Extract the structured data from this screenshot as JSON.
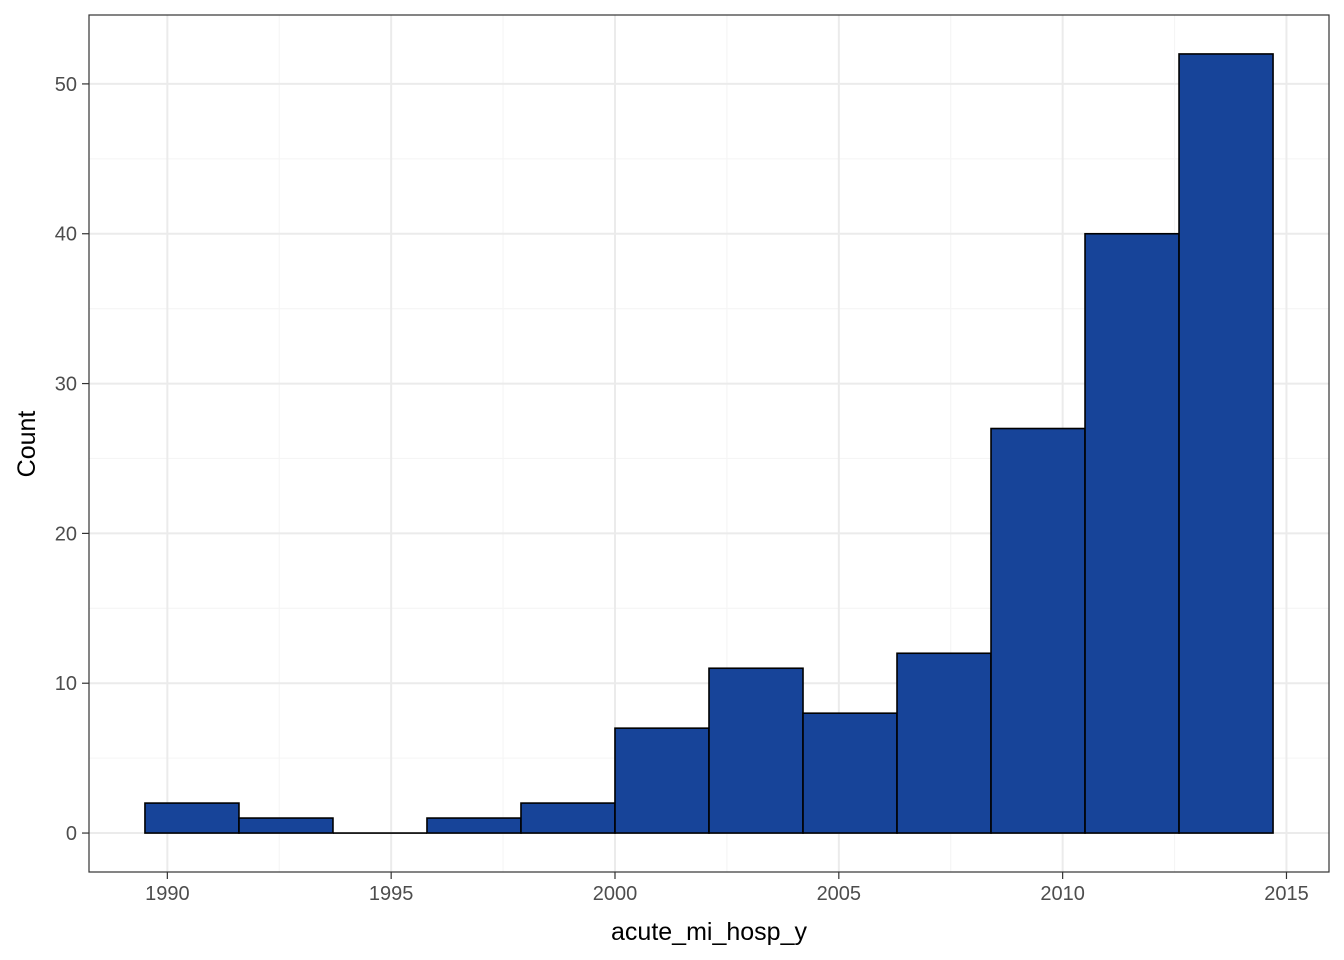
{
  "chart_data": {
    "type": "bar",
    "title": "",
    "xlabel": "acute_mi_hosp_y",
    "ylabel": "Count",
    "bins": [
      {
        "x_start": 1989.5,
        "x_end": 1991.6,
        "count": 2
      },
      {
        "x_start": 1991.6,
        "x_end": 1993.7,
        "count": 1
      },
      {
        "x_start": 1993.7,
        "x_end": 1995.8,
        "count": 0
      },
      {
        "x_start": 1995.8,
        "x_end": 1997.9,
        "count": 1
      },
      {
        "x_start": 1997.9,
        "x_end": 2000.0,
        "count": 2
      },
      {
        "x_start": 2000.0,
        "x_end": 2002.1,
        "count": 7
      },
      {
        "x_start": 2002.1,
        "x_end": 2004.2,
        "count": 11
      },
      {
        "x_start": 2004.2,
        "x_end": 2006.3,
        "count": 8
      },
      {
        "x_start": 2006.3,
        "x_end": 2008.4,
        "count": 12
      },
      {
        "x_start": 2008.4,
        "x_end": 2010.5,
        "count": 27
      },
      {
        "x_start": 2010.5,
        "x_end": 2012.6,
        "count": 40
      },
      {
        "x_start": 2012.6,
        "x_end": 2014.7,
        "count": 52
      }
    ],
    "x_ticks": [
      1990,
      1995,
      2000,
      2005,
      2010,
      2015
    ],
    "x_tick_labels": [
      "1990",
      "1995",
      "2000",
      "2005",
      "2010",
      "2015"
    ],
    "y_ticks": [
      0,
      10,
      20,
      30,
      40,
      50
    ],
    "y_tick_labels": [
      "0",
      "10",
      "20",
      "30",
      "40",
      "50"
    ],
    "xlim": [
      1988.25,
      2015.95
    ],
    "ylim": [
      -2.6,
      54.6
    ],
    "grid": true,
    "legend": "none",
    "colors": {
      "bar_fill": "#174499",
      "bar_stroke": "#000000",
      "grid_major": "#ebebeb",
      "grid_minor": "#f5f5f5",
      "panel_border": "#333333",
      "tick_label": "#4d4d4d",
      "axis_title": "#000000"
    }
  }
}
